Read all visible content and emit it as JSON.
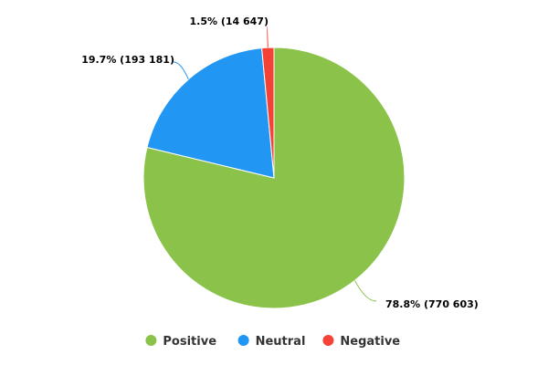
{
  "chart_data": {
    "type": "pie",
    "series": [
      {
        "name": "Positive",
        "value": 770603,
        "percent_label": "78.8%",
        "value_label": "(770 603)",
        "color": "#8bc34a"
      },
      {
        "name": "Neutral",
        "value": 193181,
        "percent_label": "19.7%",
        "value_label": "(193 181)",
        "color": "#2196f3"
      },
      {
        "name": "Negative",
        "value": 14647,
        "percent_label": "1.5%",
        "value_label": "(14 647)",
        "color": "#f44336"
      }
    ],
    "legend_position": "bottom"
  }
}
